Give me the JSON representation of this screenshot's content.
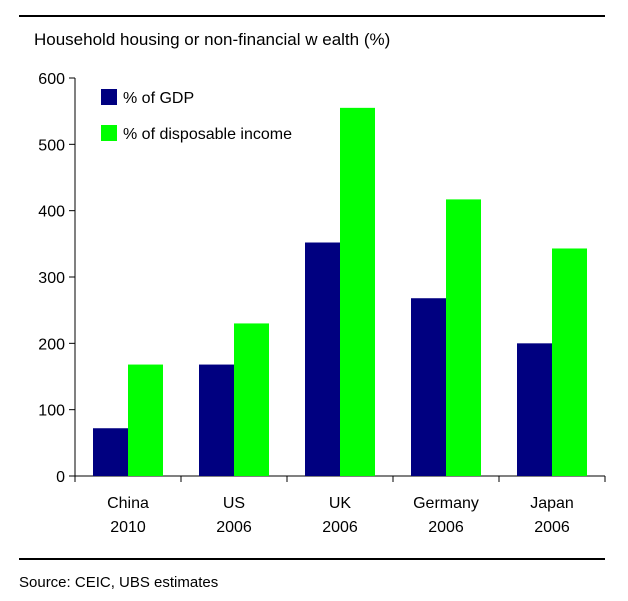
{
  "chart_data": {
    "type": "bar",
    "title": "Household housing or non-financial w ealth (%)",
    "categories": [
      [
        "China",
        "2010"
      ],
      [
        "US",
        "2006"
      ],
      [
        "UK",
        "2006"
      ],
      [
        "Germany",
        "2006"
      ],
      [
        "Japan",
        "2006"
      ]
    ],
    "series": [
      {
        "name": "% of GDP",
        "color": "#000080",
        "values": [
          72,
          168,
          352,
          268,
          200
        ]
      },
      {
        "name": "% of disposable income",
        "color": "#00ff00",
        "values": [
          168,
          230,
          555,
          417,
          343
        ]
      }
    ],
    "ylim": [
      0,
      600
    ],
    "yticks": [
      0,
      100,
      200,
      300,
      400,
      500,
      600
    ],
    "grid": false,
    "legend_position": "top-left"
  },
  "source": "Source: CEIC, UBS estimates"
}
